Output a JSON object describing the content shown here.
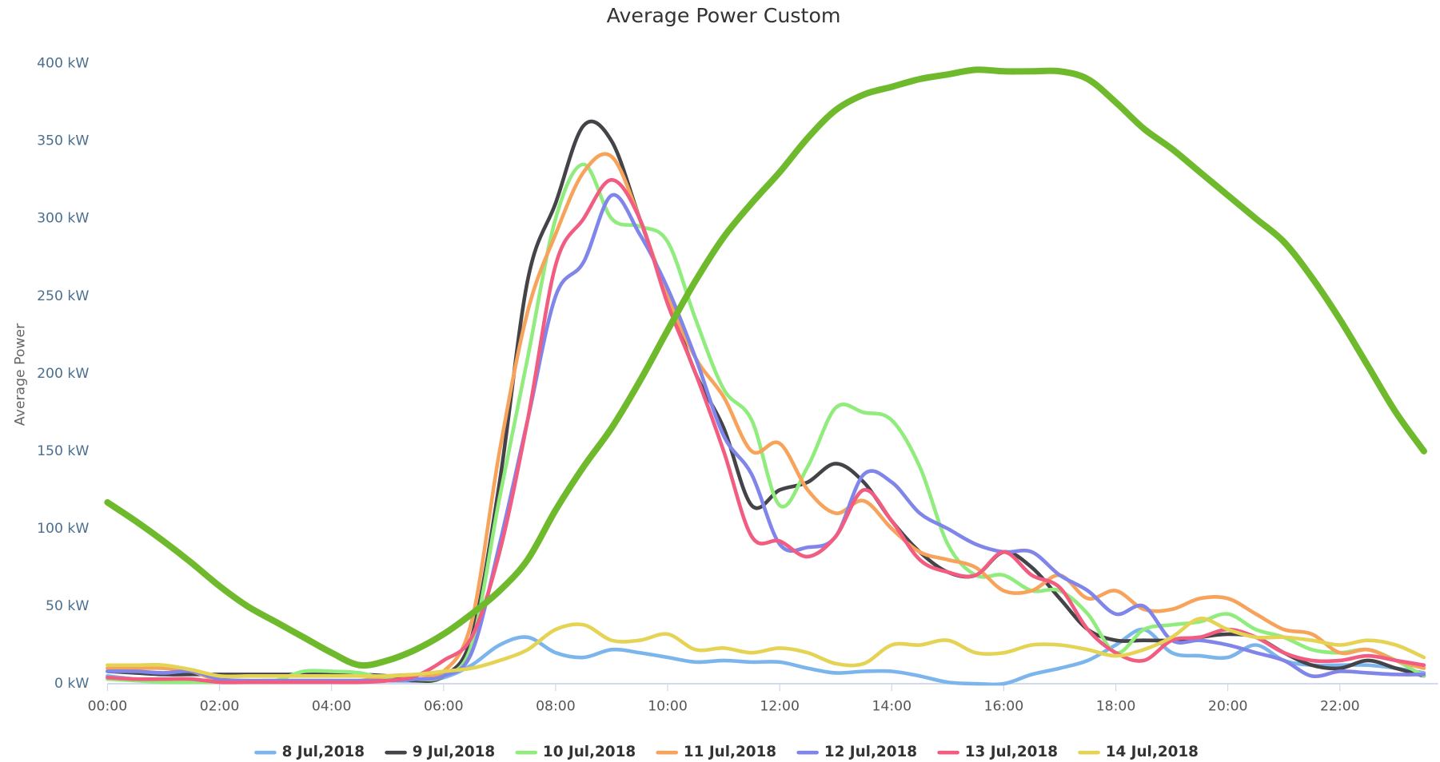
{
  "chart_data": {
    "type": "line",
    "title": "Average Power Custom",
    "y_label": "Average Power",
    "x": [
      "00:00",
      "00:30",
      "01:00",
      "01:30",
      "02:00",
      "02:30",
      "03:00",
      "03:30",
      "04:00",
      "04:30",
      "05:00",
      "05:30",
      "06:00",
      "06:30",
      "07:00",
      "07:30",
      "08:00",
      "08:30",
      "09:00",
      "09:30",
      "10:00",
      "10:30",
      "11:00",
      "11:30",
      "12:00",
      "12:30",
      "13:00",
      "13:30",
      "14:00",
      "14:30",
      "15:00",
      "15:30",
      "16:00",
      "16:30",
      "17:00",
      "17:30",
      "18:00",
      "18:30",
      "19:00",
      "19:30",
      "20:00",
      "20:30",
      "21:00",
      "21:30",
      "22:00",
      "22:30",
      "23:00",
      "23:30"
    ],
    "xlim": [
      "00:00",
      "23:45"
    ],
    "xticks": [
      "00:00",
      "02:00",
      "04:00",
      "06:00",
      "08:00",
      "10:00",
      "12:00",
      "14:00",
      "16:00",
      "18:00",
      "20:00",
      "22:00"
    ],
    "ylim": [
      0,
      400
    ],
    "yticks": [
      {
        "value": 0,
        "label": "0 kW"
      },
      {
        "value": 50,
        "label": "50 kW"
      },
      {
        "value": 100,
        "label": "100 kW"
      },
      {
        "value": 150,
        "label": "150 kW"
      },
      {
        "value": 200,
        "label": "200 kW"
      },
      {
        "value": 250,
        "label": "250 kW"
      },
      {
        "value": 300,
        "label": "300 kW"
      },
      {
        "value": 350,
        "label": "350 kW"
      },
      {
        "value": 400,
        "label": "400 kW"
      }
    ],
    "grid": false,
    "legend": "bottom",
    "series": [
      {
        "name": "8 Jul,2018",
        "color": "#7cb5ec",
        "values": [
          5,
          3,
          2,
          2,
          2,
          2,
          2,
          2,
          2,
          2,
          2,
          2,
          4,
          12,
          25,
          30,
          20,
          17,
          22,
          20,
          17,
          14,
          15,
          14,
          14,
          10,
          7,
          8,
          8,
          5,
          1,
          0,
          0,
          6,
          10,
          15,
          25,
          35,
          20,
          18,
          17,
          25,
          15,
          12,
          12,
          12,
          10,
          7
        ]
      },
      {
        "name": "9 Jul,2018",
        "color": "#434348",
        "values": [
          8,
          7,
          6,
          6,
          6,
          6,
          6,
          6,
          6,
          6,
          5,
          2,
          5,
          30,
          130,
          260,
          310,
          360,
          350,
          300,
          250,
          200,
          165,
          115,
          125,
          130,
          142,
          130,
          105,
          85,
          72,
          70,
          85,
          75,
          55,
          35,
          28,
          28,
          28,
          30,
          32,
          30,
          20,
          12,
          10,
          15,
          10,
          5
        ]
      },
      {
        "name": "10 Jul,2018",
        "color": "#90ed7d",
        "values": [
          3,
          2,
          1,
          1,
          1,
          1,
          2,
          8,
          8,
          7,
          3,
          3,
          5,
          25,
          120,
          210,
          300,
          335,
          300,
          295,
          285,
          235,
          190,
          170,
          115,
          140,
          178,
          175,
          170,
          140,
          90,
          70,
          70,
          60,
          60,
          45,
          20,
          35,
          38,
          40,
          45,
          35,
          30,
          22,
          20,
          22,
          15,
          5
        ]
      },
      {
        "name": "11 Jul,2018",
        "color": "#f7a35c",
        "values": [
          10,
          10,
          10,
          8,
          2,
          2,
          2,
          2,
          2,
          2,
          5,
          6,
          8,
          40,
          150,
          240,
          290,
          330,
          340,
          300,
          250,
          210,
          185,
          150,
          155,
          125,
          110,
          118,
          100,
          85,
          80,
          75,
          60,
          60,
          70,
          55,
          60,
          48,
          48,
          55,
          55,
          45,
          35,
          32,
          20,
          22,
          15,
          10
        ]
      },
      {
        "name": "12 Jul,2018",
        "color": "#8085e9",
        "values": [
          8,
          8,
          7,
          8,
          3,
          2,
          2,
          2,
          2,
          2,
          2,
          3,
          5,
          20,
          90,
          170,
          250,
          272,
          315,
          290,
          255,
          210,
          160,
          135,
          90,
          88,
          95,
          135,
          130,
          110,
          100,
          90,
          85,
          85,
          70,
          60,
          45,
          50,
          28,
          28,
          25,
          20,
          15,
          5,
          8,
          7,
          6,
          6
        ]
      },
      {
        "name": "13 Jul,2018",
        "color": "#f15c80",
        "values": [
          4,
          3,
          3,
          3,
          1,
          1,
          1,
          1,
          1,
          1,
          2,
          5,
          15,
          30,
          85,
          170,
          270,
          300,
          325,
          300,
          245,
          200,
          150,
          95,
          92,
          82,
          95,
          125,
          105,
          80,
          72,
          70,
          85,
          70,
          62,
          35,
          20,
          15,
          28,
          30,
          35,
          30,
          20,
          15,
          15,
          18,
          15,
          12
        ]
      },
      {
        "name": "14 Jul,2018",
        "color": "#e4d354",
        "values": [
          12,
          12,
          12,
          9,
          5,
          5,
          5,
          5,
          5,
          5,
          5,
          6,
          8,
          10,
          15,
          22,
          35,
          38,
          28,
          28,
          32,
          22,
          23,
          20,
          23,
          20,
          13,
          13,
          25,
          25,
          28,
          20,
          20,
          25,
          25,
          22,
          18,
          22,
          30,
          42,
          35,
          30,
          30,
          28,
          25,
          28,
          25,
          17
        ]
      },
      {
        "color": "#6fba2c",
        "values": [
          117,
          105,
          92,
          78,
          63,
          50,
          40,
          30,
          20,
          12,
          15,
          22,
          32,
          45,
          60,
          80,
          112,
          140,
          165,
          195,
          228,
          260,
          288,
          310,
          330,
          352,
          370,
          380,
          385,
          390,
          393,
          396,
          395,
          395,
          395,
          390,
          375,
          358,
          345,
          330,
          315,
          300,
          285,
          262,
          235,
          205,
          175,
          150
        ]
      }
    ]
  }
}
